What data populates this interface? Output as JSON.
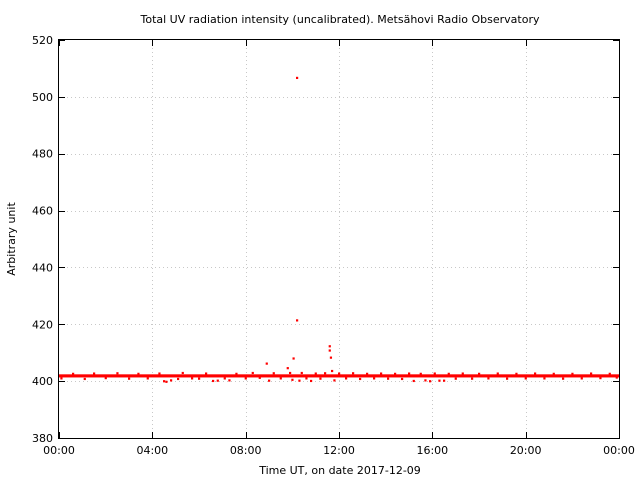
{
  "chart_data": {
    "type": "scatter",
    "title": "Total UV radiation intensity (uncalibrated). Metsähovi Radio Observatory",
    "xlabel": "Time UT, on date 2017-12-09",
    "ylabel": "Arbitrary unit",
    "x_unit": "hours UT",
    "xlim": [
      0,
      24
    ],
    "ylim": [
      380,
      520
    ],
    "x_ticks": [
      0,
      4,
      8,
      12,
      16,
      20,
      24
    ],
    "x_tick_labels": [
      "00:00",
      "04:00",
      "08:00",
      "12:00",
      "16:00",
      "20:00",
      "00:00"
    ],
    "y_ticks": [
      380,
      400,
      420,
      440,
      460,
      480,
      500,
      520
    ],
    "y_tick_labels": [
      "380",
      "400",
      "420",
      "440",
      "460",
      "480",
      "500",
      "520"
    ],
    "grid": true,
    "series_color": "#ff0000",
    "baseline_band": {
      "x": [
        0,
        24
      ],
      "y_low": 401.3,
      "y_high": 402.4
    },
    "series": [
      {
        "name": "",
        "points": [
          [
            0.1,
            401.0
          ],
          [
            0.6,
            402.6
          ],
          [
            1.1,
            400.8
          ],
          [
            1.5,
            402.7
          ],
          [
            2.0,
            401.1
          ],
          [
            2.5,
            402.8
          ],
          [
            3.0,
            400.9
          ],
          [
            3.4,
            402.6
          ],
          [
            3.8,
            401.0
          ],
          [
            4.3,
            402.7
          ],
          [
            4.5,
            400.0
          ],
          [
            4.6,
            399.8
          ],
          [
            4.8,
            400.3
          ],
          [
            5.1,
            400.8
          ],
          [
            5.3,
            402.9
          ],
          [
            5.7,
            401.0
          ],
          [
            6.0,
            400.9
          ],
          [
            6.3,
            402.7
          ],
          [
            6.6,
            400.1
          ],
          [
            6.8,
            400.2
          ],
          [
            7.1,
            401.0
          ],
          [
            7.3,
            400.3
          ],
          [
            7.6,
            402.6
          ],
          [
            8.0,
            401.0
          ],
          [
            8.3,
            402.9
          ],
          [
            8.6,
            401.2
          ],
          [
            8.9,
            406.2
          ],
          [
            9.0,
            400.2
          ],
          [
            9.2,
            402.8
          ],
          [
            9.5,
            401.0
          ],
          [
            9.8,
            404.6
          ],
          [
            9.9,
            402.9
          ],
          [
            10.0,
            400.5
          ],
          [
            10.05,
            408.0
          ],
          [
            10.2,
            506.7
          ],
          [
            10.2,
            421.4
          ],
          [
            10.3,
            400.2
          ],
          [
            10.4,
            402.9
          ],
          [
            10.6,
            401.0
          ],
          [
            10.8,
            400.1
          ],
          [
            11.0,
            402.7
          ],
          [
            11.2,
            400.9
          ],
          [
            11.4,
            402.8
          ],
          [
            11.6,
            412.3
          ],
          [
            11.6,
            410.8
          ],
          [
            11.65,
            408.3
          ],
          [
            11.7,
            403.6
          ],
          [
            11.8,
            400.3
          ],
          [
            12.0,
            402.7
          ],
          [
            12.3,
            401.0
          ],
          [
            12.6,
            402.8
          ],
          [
            12.9,
            400.8
          ],
          [
            13.2,
            402.6
          ],
          [
            13.5,
            401.0
          ],
          [
            13.8,
            402.7
          ],
          [
            14.1,
            400.9
          ],
          [
            14.4,
            402.6
          ],
          [
            14.7,
            400.8
          ],
          [
            15.0,
            402.7
          ],
          [
            15.2,
            400.1
          ],
          [
            15.5,
            402.6
          ],
          [
            15.7,
            400.3
          ],
          [
            15.9,
            400.0
          ],
          [
            16.1,
            402.7
          ],
          [
            16.3,
            400.2
          ],
          [
            16.5,
            400.2
          ],
          [
            16.7,
            402.6
          ],
          [
            17.0,
            400.9
          ],
          [
            17.3,
            402.7
          ],
          [
            17.7,
            400.9
          ],
          [
            18.0,
            402.6
          ],
          [
            18.4,
            401.0
          ],
          [
            18.8,
            402.7
          ],
          [
            19.2,
            400.9
          ],
          [
            19.6,
            402.6
          ],
          [
            20.0,
            401.0
          ],
          [
            20.4,
            402.7
          ],
          [
            20.8,
            401.0
          ],
          [
            21.2,
            402.6
          ],
          [
            21.6,
            400.9
          ],
          [
            22.0,
            402.6
          ],
          [
            22.4,
            401.0
          ],
          [
            22.8,
            402.7
          ],
          [
            23.2,
            401.1
          ],
          [
            23.6,
            402.6
          ],
          [
            23.9,
            401.3
          ]
        ]
      }
    ]
  }
}
